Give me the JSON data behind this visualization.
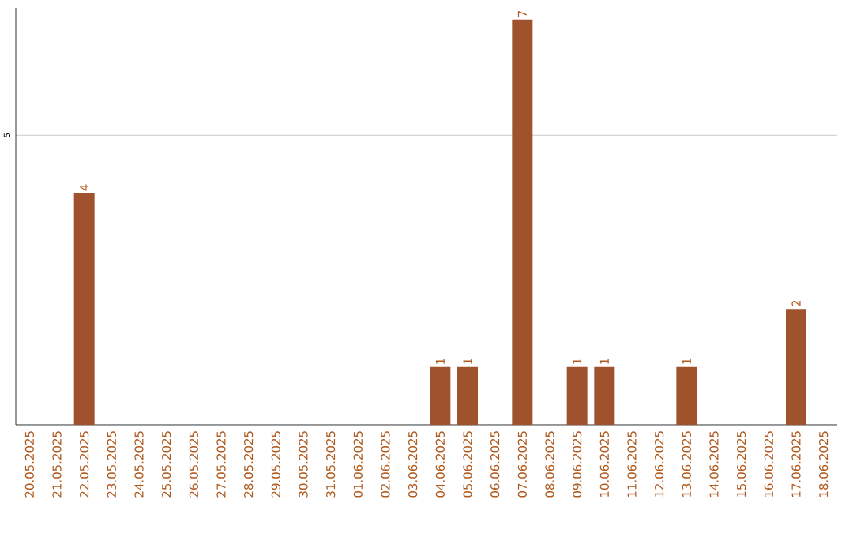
{
  "chart_data": {
    "type": "bar",
    "categories": [
      "20.05.2025",
      "21.05.2025",
      "22.05.2025",
      "23.05.2025",
      "24.05.2025",
      "25.05.2025",
      "26.05.2025",
      "27.05.2025",
      "28.05.2025",
      "29.05.2025",
      "30.05.2025",
      "31.05.2025",
      "01.06.2025",
      "02.06.2025",
      "03.06.2025",
      "04.06.2025",
      "05.06.2025",
      "06.06.2025",
      "07.06.2025",
      "08.06.2025",
      "09.06.2025",
      "10.06.2025",
      "11.06.2025",
      "12.06.2025",
      "13.06.2025",
      "14.06.2025",
      "15.06.2025",
      "16.06.2025",
      "17.06.2025",
      "18.06.2025"
    ],
    "values": [
      0,
      0,
      4,
      0,
      0,
      0,
      0,
      0,
      0,
      0,
      0,
      0,
      0,
      0,
      0,
      1,
      1,
      0,
      7,
      0,
      1,
      1,
      0,
      0,
      1,
      0,
      0,
      0,
      2,
      0
    ],
    "value_labels": [
      null,
      null,
      "4",
      null,
      null,
      null,
      null,
      null,
      null,
      null,
      null,
      null,
      null,
      null,
      null,
      "1",
      "1",
      null,
      "7",
      null,
      "1",
      "1",
      null,
      null,
      "1",
      null,
      null,
      null,
      "2",
      null
    ],
    "color": "#a0522d",
    "ylim": [
      0,
      7.2
    ],
    "yticks": [
      5
    ],
    "grid": "y"
  }
}
